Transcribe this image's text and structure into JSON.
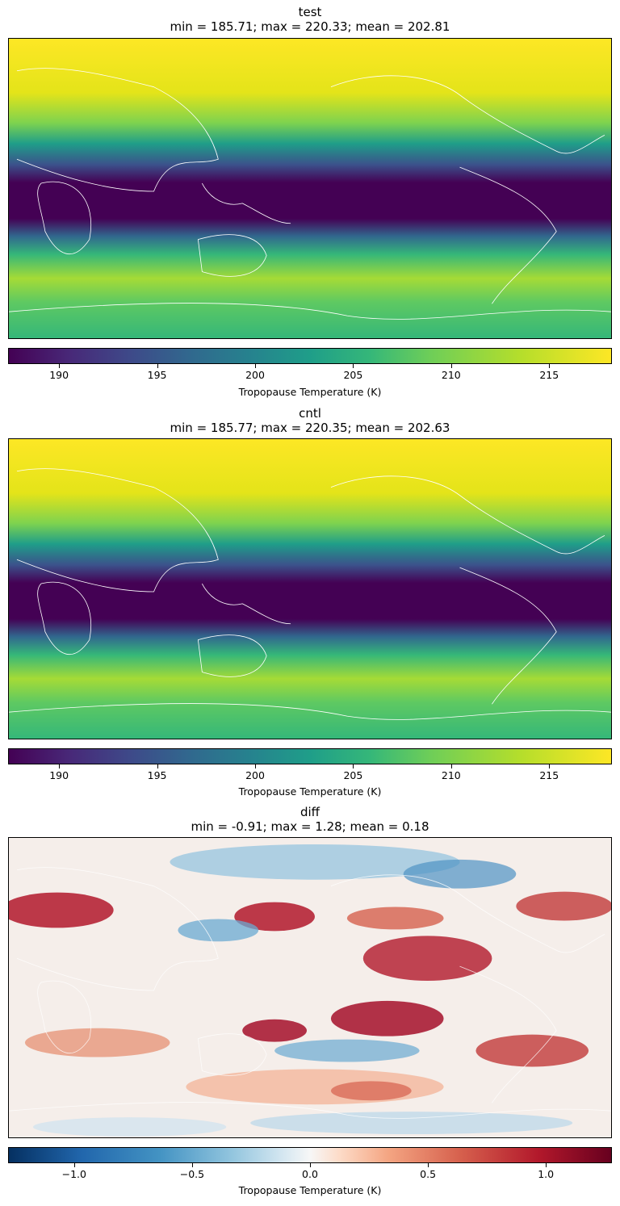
{
  "panels": [
    {
      "name": "test",
      "title": "test",
      "subtitle": "min = 185.71; max = 220.33; mean = 202.81",
      "colormap": "viridis",
      "colorbar": {
        "ticks": [
          190,
          195,
          200,
          205,
          210,
          215
        ],
        "range": [
          187.4,
          218.2
        ],
        "tick_labels": [
          "190",
          "195",
          "200",
          "205",
          "210",
          "215"
        ],
        "label": "Tropopause Temperature (K)"
      }
    },
    {
      "name": "cntl",
      "title": "cntl",
      "subtitle": "min = 185.77; max = 220.35; mean = 202.63",
      "colormap": "viridis",
      "colorbar": {
        "ticks": [
          190,
          195,
          200,
          205,
          210,
          215
        ],
        "range": [
          187.4,
          218.2
        ],
        "tick_labels": [
          "190",
          "195",
          "200",
          "205",
          "210",
          "215"
        ],
        "label": "Tropopause Temperature (K)"
      }
    },
    {
      "name": "diff",
      "title": "diff",
      "subtitle": "min = -0.91; max = 1.28; mean = 0.18",
      "colormap": "RdBu_r",
      "colorbar": {
        "ticks": [
          -1.0,
          -0.5,
          0.0,
          0.5,
          1.0
        ],
        "range": [
          -1.28,
          1.28
        ],
        "tick_labels": [
          "−1.0",
          "−0.5",
          "0.0",
          "0.5",
          "1.0"
        ],
        "label": "Tropopause Temperature (K)"
      }
    }
  ],
  "chart_data": [
    {
      "type": "heatmap",
      "title": "test",
      "subtitle": "min = 185.71; max = 220.33; mean = 202.81",
      "colorbar_label": "Tropopause Temperature (K)",
      "vmin": 187.4,
      "vmax": 218.2,
      "colormap": "viridis"
    },
    {
      "type": "heatmap",
      "title": "cntl",
      "subtitle": "min = 185.77; max = 220.35; mean = 202.63",
      "colorbar_label": "Tropopause Temperature (K)",
      "vmin": 187.4,
      "vmax": 218.2,
      "colormap": "viridis"
    },
    {
      "type": "heatmap",
      "title": "diff",
      "subtitle": "min = -0.91; max = 1.28; mean = 0.18",
      "colorbar_label": "Tropopause Temperature (K)",
      "vmin": -1.28,
      "vmax": 1.28,
      "colormap": "RdBu_r"
    }
  ]
}
